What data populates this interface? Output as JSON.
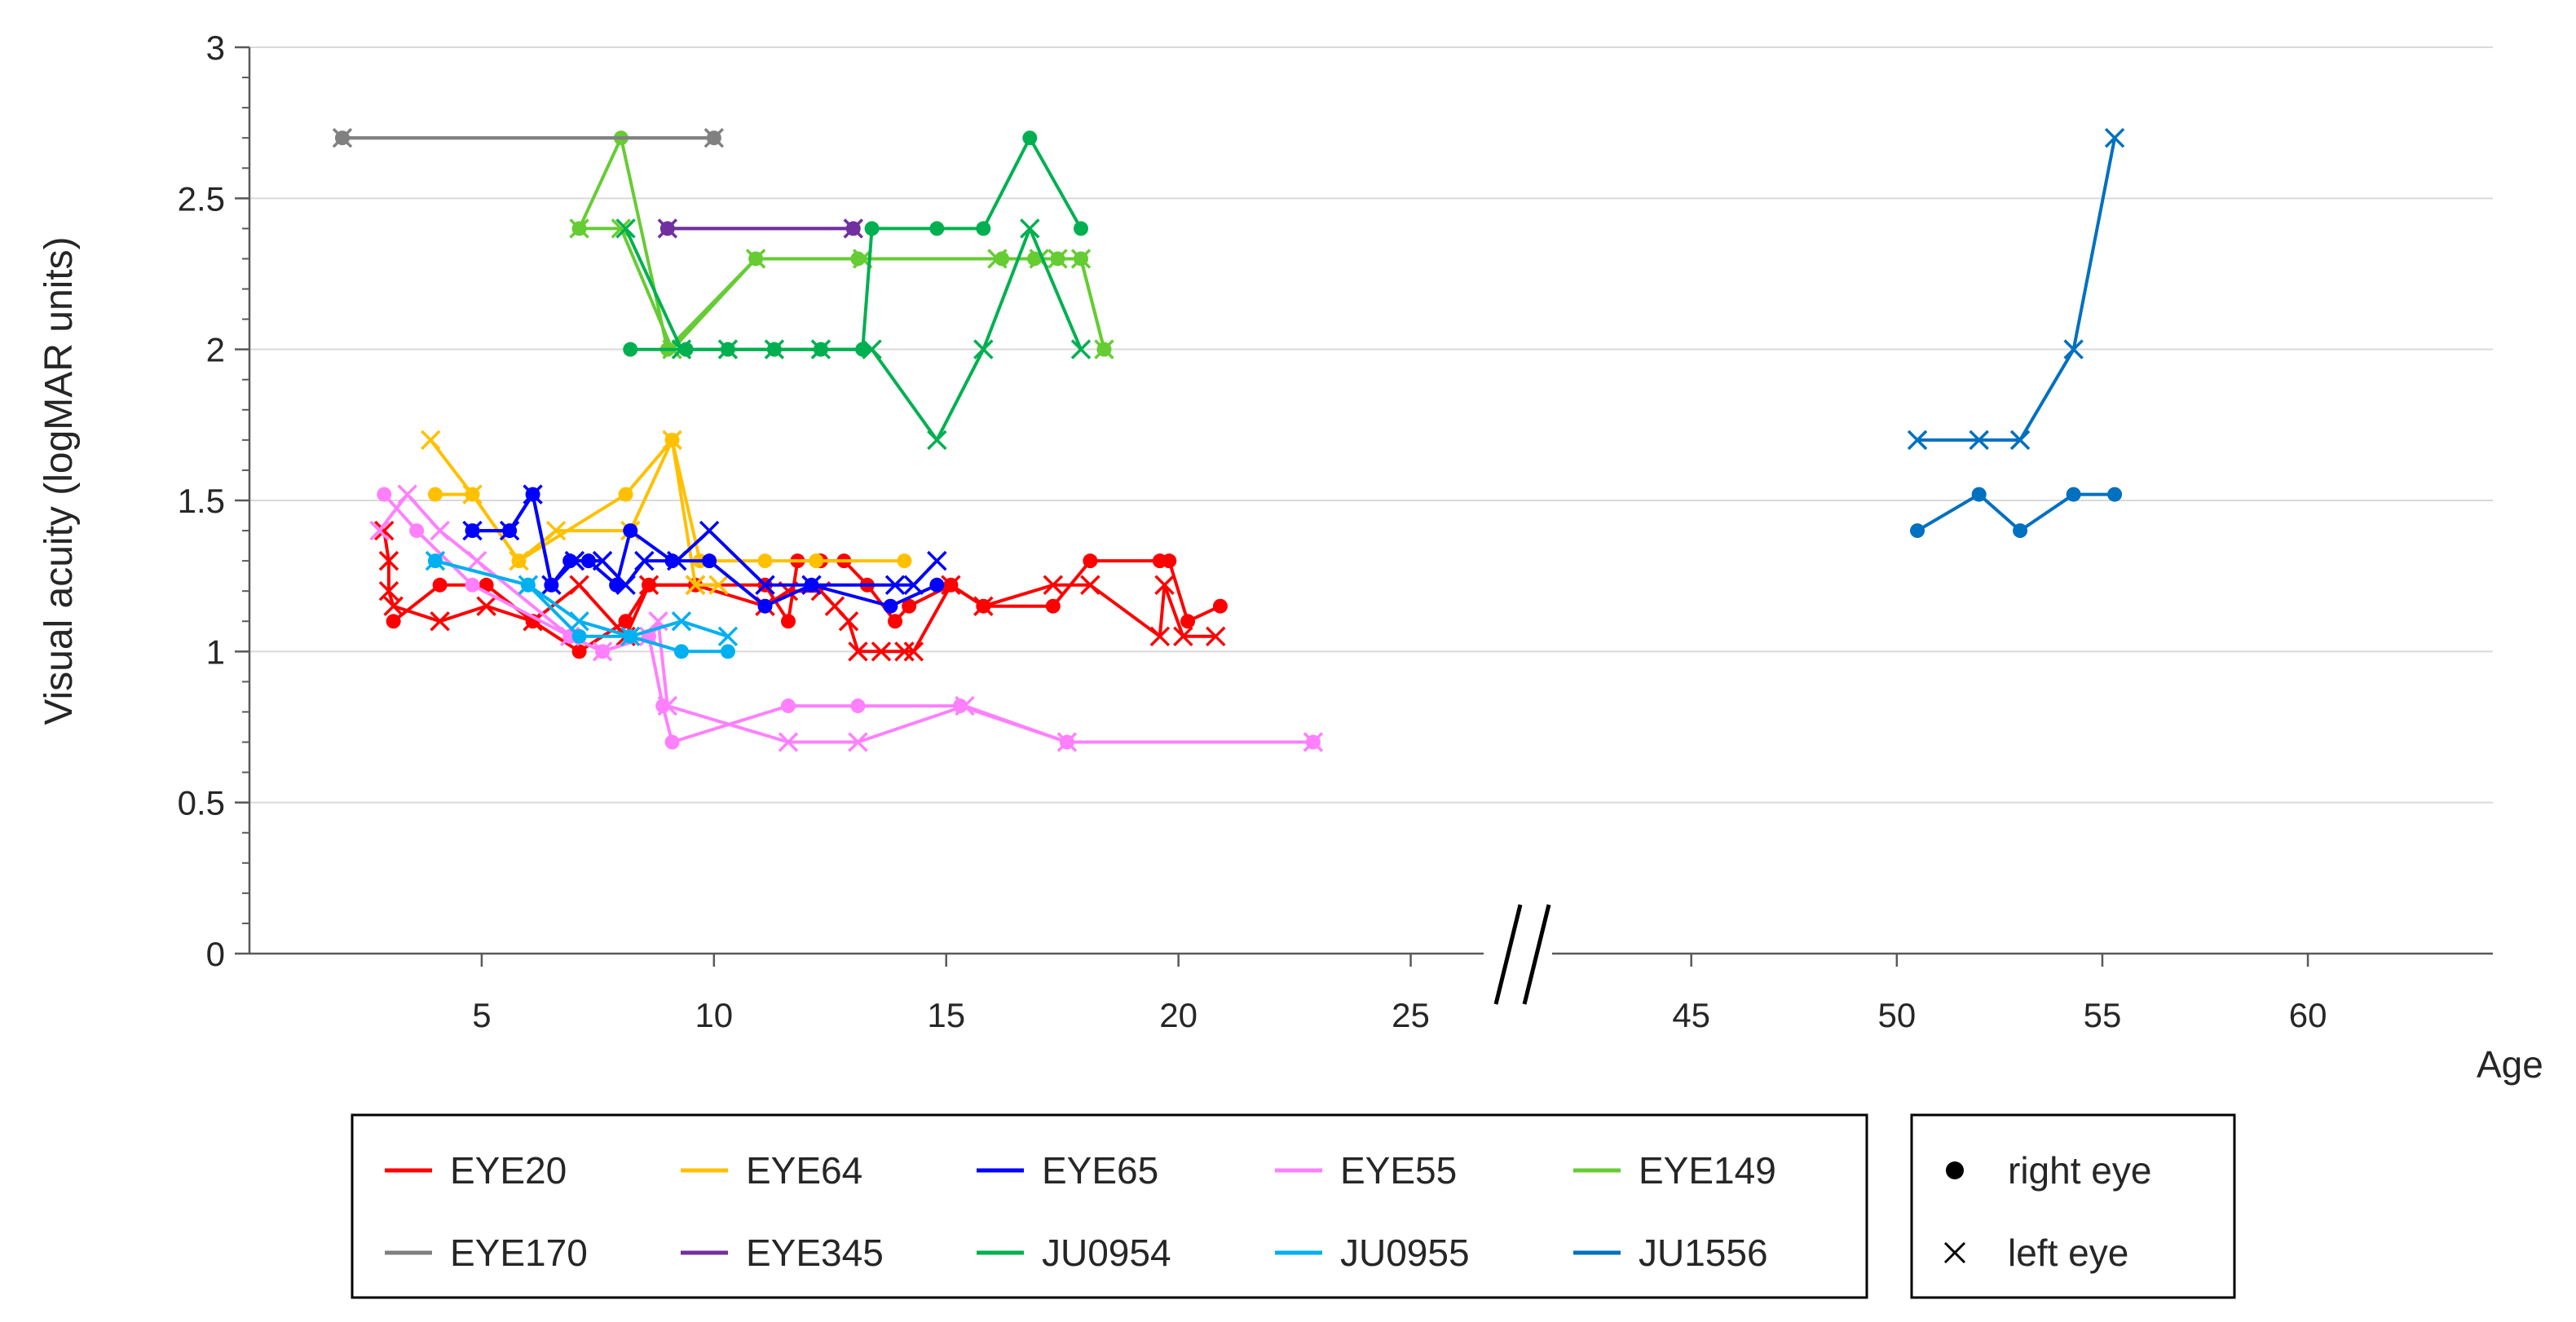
{
  "chart_data": {
    "type": "line",
    "title": "",
    "xlabel": "Age",
    "ylabel": "Visual acuity (logMAR units)",
    "ylim": [
      0,
      3
    ],
    "yticks": [
      0,
      0.5,
      1,
      1.5,
      2,
      2.5,
      3
    ],
    "x_segments": [
      {
        "range": [
          0,
          27.5
        ],
        "ticks": [
          5,
          10,
          15,
          20,
          25
        ]
      },
      {
        "range": [
          41,
          64.5
        ],
        "ticks": [
          45,
          50,
          55,
          60
        ]
      }
    ],
    "axis_break": "between 25 and 45",
    "series": [
      {
        "name": "EYE20",
        "color": "#ff0000",
        "right": [
          [
            3.1,
            1.1
          ],
          [
            4.1,
            1.22
          ],
          [
            5.1,
            1.22
          ],
          [
            6.1,
            1.1
          ],
          [
            7.1,
            1.0
          ],
          [
            8.1,
            1.1
          ],
          [
            8.6,
            1.22
          ],
          [
            9.6,
            1.22
          ],
          [
            11.1,
            1.22
          ],
          [
            11.6,
            1.1
          ],
          [
            11.8,
            1.3
          ],
          [
            12.3,
            1.3
          ],
          [
            12.8,
            1.3
          ],
          [
            13.3,
            1.22
          ],
          [
            13.9,
            1.1
          ],
          [
            14.2,
            1.15
          ],
          [
            15.1,
            1.22
          ],
          [
            15.8,
            1.15
          ],
          [
            17.3,
            1.15
          ],
          [
            18.1,
            1.3
          ],
          [
            19.6,
            1.3
          ],
          [
            19.8,
            1.3
          ],
          [
            20.2,
            1.1
          ],
          [
            20.9,
            1.15
          ]
        ],
        "left": [
          [
            2.9,
            1.4
          ],
          [
            3.0,
            1.3
          ],
          [
            3.0,
            1.2
          ],
          [
            3.1,
            1.15
          ],
          [
            4.1,
            1.1
          ],
          [
            5.1,
            1.15
          ],
          [
            6.1,
            1.1
          ],
          [
            7.1,
            1.22
          ],
          [
            8.1,
            1.05
          ],
          [
            8.6,
            1.22
          ],
          [
            9.6,
            1.22
          ],
          [
            11.1,
            1.15
          ],
          [
            11.6,
            1.2
          ],
          [
            12.3,
            1.2
          ],
          [
            12.6,
            1.15
          ],
          [
            12.9,
            1.1
          ],
          [
            13.1,
            1.0
          ],
          [
            13.6,
            1.0
          ],
          [
            14.1,
            1.0
          ],
          [
            14.3,
            1.0
          ],
          [
            15.1,
            1.22
          ],
          [
            15.8,
            1.15
          ],
          [
            17.3,
            1.22
          ],
          [
            18.1,
            1.22
          ],
          [
            19.6,
            1.05
          ],
          [
            19.7,
            1.22
          ],
          [
            20.1,
            1.05
          ],
          [
            20.8,
            1.05
          ]
        ]
      },
      {
        "name": "EYE64",
        "color": "#ffc000",
        "right": [
          [
            4.0,
            1.52
          ],
          [
            4.8,
            1.52
          ],
          [
            5.8,
            1.3
          ],
          [
            8.1,
            1.52
          ],
          [
            9.1,
            1.7
          ],
          [
            9.7,
            1.3
          ],
          [
            11.1,
            1.3
          ],
          [
            12.2,
            1.3
          ],
          [
            14.1,
            1.3
          ]
        ],
        "left": [
          [
            3.9,
            1.7
          ],
          [
            4.8,
            1.52
          ],
          [
            5.8,
            1.3
          ],
          [
            6.6,
            1.4
          ],
          [
            8.2,
            1.4
          ],
          [
            9.1,
            1.7
          ],
          [
            9.6,
            1.22
          ],
          [
            10.1,
            1.22
          ]
        ]
      },
      {
        "name": "EYE65",
        "color": "#0000ff",
        "right": [
          [
            4.8,
            1.4
          ],
          [
            5.6,
            1.4
          ],
          [
            6.1,
            1.52
          ],
          [
            6.5,
            1.22
          ],
          [
            6.9,
            1.3
          ],
          [
            7.3,
            1.3
          ],
          [
            7.9,
            1.22
          ],
          [
            8.2,
            1.4
          ],
          [
            9.1,
            1.3
          ],
          [
            9.9,
            1.3
          ],
          [
            11.1,
            1.15
          ],
          [
            12.1,
            1.22
          ],
          [
            13.8,
            1.15
          ],
          [
            14.8,
            1.22
          ]
        ],
        "left": [
          [
            4.8,
            1.4
          ],
          [
            5.6,
            1.4
          ],
          [
            6.1,
            1.52
          ],
          [
            6.5,
            1.22
          ],
          [
            7.0,
            1.3
          ],
          [
            7.6,
            1.3
          ],
          [
            8.1,
            1.22
          ],
          [
            8.5,
            1.3
          ],
          [
            9.2,
            1.3
          ],
          [
            9.9,
            1.4
          ],
          [
            11.1,
            1.22
          ],
          [
            12.1,
            1.22
          ],
          [
            13.9,
            1.22
          ],
          [
            14.3,
            1.22
          ],
          [
            14.8,
            1.3
          ]
        ]
      },
      {
        "name": "EYE55",
        "color": "#ff80ff",
        "right": [
          [
            2.9,
            1.52
          ],
          [
            3.6,
            1.4
          ],
          [
            4.8,
            1.22
          ],
          [
            6.9,
            1.05
          ],
          [
            7.6,
            1.0
          ],
          [
            8.6,
            1.05
          ],
          [
            8.9,
            0.82
          ],
          [
            9.1,
            0.7
          ],
          [
            11.6,
            0.82
          ],
          [
            13.1,
            0.82
          ],
          [
            15.3,
            0.82
          ],
          [
            17.6,
            0.7
          ],
          [
            22.9,
            0.7
          ]
        ],
        "left": [
          [
            2.8,
            1.4
          ],
          [
            3.4,
            1.52
          ],
          [
            4.1,
            1.4
          ],
          [
            4.9,
            1.3
          ],
          [
            6.9,
            1.05
          ],
          [
            7.6,
            1.0
          ],
          [
            8.6,
            1.05
          ],
          [
            8.8,
            1.1
          ],
          [
            9.0,
            0.82
          ],
          [
            11.6,
            0.7
          ],
          [
            13.1,
            0.7
          ],
          [
            15.4,
            0.82
          ],
          [
            17.6,
            0.7
          ],
          [
            22.9,
            0.7
          ]
        ]
      },
      {
        "name": "EYE149",
        "color": "#66cc33",
        "right": [
          [
            7.1,
            2.4
          ],
          [
            8.0,
            2.7
          ],
          [
            9.0,
            2.0
          ],
          [
            10.9,
            2.3
          ],
          [
            13.1,
            2.3
          ],
          [
            16.2,
            2.3
          ],
          [
            16.9,
            2.3
          ],
          [
            17.4,
            2.3
          ],
          [
            17.9,
            2.3
          ],
          [
            18.4,
            2.0
          ]
        ],
        "left": [
          [
            7.1,
            2.4
          ],
          [
            8.0,
            2.4
          ],
          [
            9.1,
            2.0
          ],
          [
            10.9,
            2.3
          ],
          [
            13.2,
            2.3
          ],
          [
            16.1,
            2.3
          ],
          [
            17.0,
            2.3
          ],
          [
            17.4,
            2.3
          ],
          [
            17.9,
            2.3
          ],
          [
            18.4,
            2.0
          ]
        ]
      },
      {
        "name": "EYE170",
        "color": "#808080",
        "right": [
          [
            2.0,
            2.7
          ],
          [
            10.0,
            2.7
          ]
        ],
        "left": [
          [
            2.0,
            2.7
          ],
          [
            10.0,
            2.7
          ]
        ]
      },
      {
        "name": "EYE345",
        "color": "#7030a0",
        "right": [
          [
            9.0,
            2.4
          ],
          [
            13.0,
            2.4
          ]
        ],
        "left": [
          [
            9.0,
            2.4
          ],
          [
            13.0,
            2.4
          ]
        ]
      },
      {
        "name": "JU0954",
        "color": "#00b050",
        "right": [
          [
            8.2,
            2.0
          ],
          [
            9.4,
            2.0
          ],
          [
            10.3,
            2.0
          ],
          [
            11.3,
            2.0
          ],
          [
            12.3,
            2.0
          ],
          [
            13.2,
            2.0
          ],
          [
            13.4,
            2.4
          ],
          [
            14.8,
            2.4
          ],
          [
            15.8,
            2.4
          ],
          [
            16.8,
            2.7
          ],
          [
            17.9,
            2.4
          ]
        ],
        "left": [
          [
            8.1,
            2.4
          ],
          [
            9.3,
            2.0
          ],
          [
            10.3,
            2.0
          ],
          [
            11.3,
            2.0
          ],
          [
            12.3,
            2.0
          ],
          [
            13.4,
            2.0
          ],
          [
            14.8,
            1.7
          ],
          [
            15.8,
            2.0
          ],
          [
            16.8,
            2.4
          ],
          [
            17.9,
            2.0
          ]
        ]
      },
      {
        "name": "JU0955",
        "color": "#00b0f0",
        "right": [
          [
            4.0,
            1.3
          ],
          [
            6.0,
            1.22
          ],
          [
            7.1,
            1.05
          ],
          [
            8.2,
            1.05
          ],
          [
            9.3,
            1.0
          ],
          [
            10.3,
            1.0
          ]
        ],
        "left": [
          [
            4.0,
            1.3
          ],
          [
            6.0,
            1.22
          ],
          [
            7.1,
            1.1
          ],
          [
            8.2,
            1.05
          ],
          [
            9.3,
            1.1
          ],
          [
            10.3,
            1.05
          ]
        ]
      },
      {
        "name": "JU1556",
        "color": "#0070c0",
        "right": [
          [
            50.5,
            1.4
          ],
          [
            52.0,
            1.52
          ],
          [
            53.0,
            1.4
          ],
          [
            54.3,
            1.52
          ],
          [
            55.3,
            1.52
          ]
        ],
        "left": [
          [
            50.5,
            1.7
          ],
          [
            52.0,
            1.7
          ],
          [
            53.0,
            1.7
          ],
          [
            54.3,
            2.0
          ],
          [
            55.3,
            2.7
          ]
        ]
      }
    ],
    "marker_legend": [
      {
        "marker": "dot",
        "label": "right eye"
      },
      {
        "marker": "cross",
        "label": "left eye"
      }
    ]
  }
}
